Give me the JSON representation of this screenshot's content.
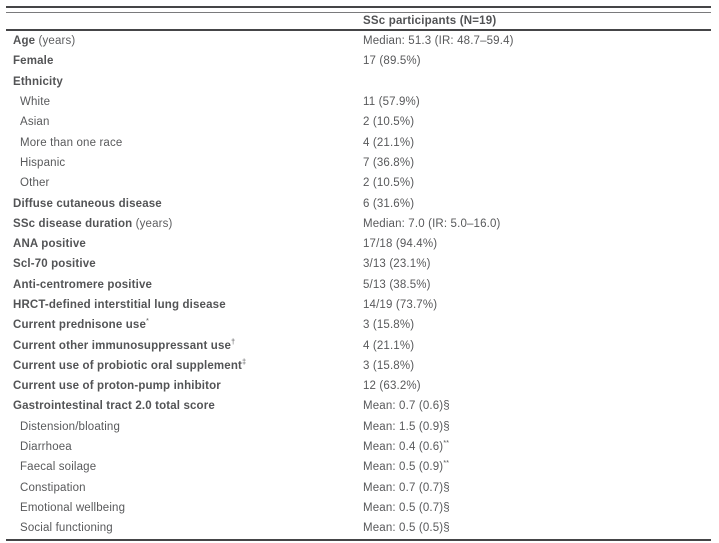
{
  "table": {
    "header": {
      "participants": "SSc participants (N=19)"
    },
    "rows": [
      {
        "label": "Age",
        "unit": " (years)",
        "sup": "",
        "value": "Median: 51.3 (IR: 48.7–59.4)",
        "value_sup": ""
      },
      {
        "label": "Female",
        "unit": "",
        "sup": "",
        "value": "17 (89.5%)",
        "value_sup": ""
      },
      {
        "label": "Ethnicity",
        "unit": "",
        "sup": "",
        "value": "",
        "value_sup": ""
      },
      {
        "label": "White",
        "unit": "",
        "sup": "",
        "value": "11 (57.9%)",
        "value_sup": ""
      },
      {
        "label": "Asian",
        "unit": "",
        "sup": "",
        "value": "2 (10.5%)",
        "value_sup": ""
      },
      {
        "label": "More than one race",
        "unit": "",
        "sup": "",
        "value": "4 (21.1%)",
        "value_sup": ""
      },
      {
        "label": "Hispanic",
        "unit": "",
        "sup": "",
        "value": "7 (36.8%)",
        "value_sup": ""
      },
      {
        "label": "Other",
        "unit": "",
        "sup": "",
        "value": "2 (10.5%)",
        "value_sup": ""
      },
      {
        "label": "Diffuse cutaneous disease",
        "unit": "",
        "sup": "",
        "value": "6 (31.6%)",
        "value_sup": ""
      },
      {
        "label": "SSc disease duration",
        "unit": " (years)",
        "sup": "",
        "value": "Median: 7.0 (IR: 5.0–16.0)",
        "value_sup": ""
      },
      {
        "label": "ANA positive",
        "unit": "",
        "sup": "",
        "value": "17/18 (94.4%)",
        "value_sup": ""
      },
      {
        "label": "Scl-70 positive",
        "unit": "",
        "sup": "",
        "value": "3/13 (23.1%)",
        "value_sup": ""
      },
      {
        "label": "Anti-centromere positive",
        "unit": "",
        "sup": "",
        "value": "5/13 (38.5%)",
        "value_sup": ""
      },
      {
        "label": "HRCT-defined interstitial lung disease",
        "unit": "",
        "sup": "",
        "value": "14/19 (73.7%)",
        "value_sup": ""
      },
      {
        "label": "Current prednisone use",
        "unit": "",
        "sup": "*",
        "value": "3 (15.8%)",
        "value_sup": ""
      },
      {
        "label": "Current other immunosuppressant use",
        "unit": "",
        "sup": "†",
        "value": "4 (21.1%)",
        "value_sup": ""
      },
      {
        "label": "Current use of probiotic oral supplement",
        "unit": "",
        "sup": "‡",
        "value": "3 (15.8%)",
        "value_sup": ""
      },
      {
        "label": "Current use of proton-pump inhibitor",
        "unit": "",
        "sup": "",
        "value": "12 (63.2%)",
        "value_sup": ""
      },
      {
        "label": "Gastrointestinal tract 2.0 total score",
        "unit": "",
        "sup": "",
        "value": "Mean: 0.7 (0.6)§",
        "value_sup": ""
      },
      {
        "label": "Distension/bloating",
        "unit": "",
        "sup": "",
        "value": "Mean: 1.5 (0.9)§",
        "value_sup": ""
      },
      {
        "label": "Diarrhoea",
        "unit": "",
        "sup": "",
        "value": "Mean: 0.4 (0.6)",
        "value_sup": "**"
      },
      {
        "label": "Faecal soilage",
        "unit": "",
        "sup": "",
        "value": "Mean: 0.5 (0.9)",
        "value_sup": "**"
      },
      {
        "label": "Constipation",
        "unit": "",
        "sup": "",
        "value": "Mean: 0.7 (0.7)§",
        "value_sup": ""
      },
      {
        "label": "Emotional wellbeing",
        "unit": "",
        "sup": "",
        "value": "Mean: 0.5 (0.7)§",
        "value_sup": ""
      },
      {
        "label": "Social functioning",
        "unit": "",
        "sup": "",
        "value": "Mean: 0.5 (0.5)§",
        "value_sup": ""
      }
    ]
  }
}
